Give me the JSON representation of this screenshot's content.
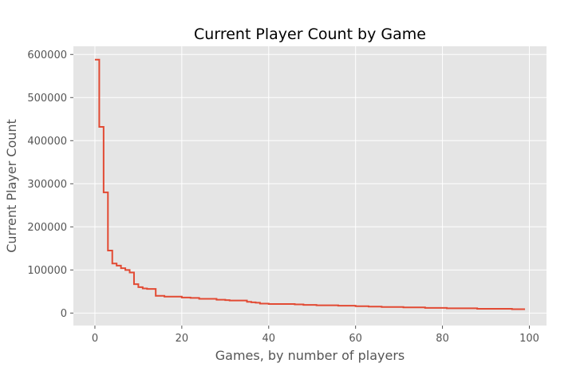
{
  "chart_data": {
    "type": "line",
    "drawstyle": "steps-post",
    "title": "Current Player Count by Game",
    "xlabel": "Games, by number of players",
    "ylabel": "Current Player Count",
    "xlim": [
      -4.95,
      103.95
    ],
    "ylim": [
      -29000,
      619000
    ],
    "xticks": [
      0,
      20,
      40,
      60,
      80,
      100
    ],
    "xtick_labels": [
      "0",
      "20",
      "40",
      "60",
      "80",
      "100"
    ],
    "yticks": [
      0,
      100000,
      200000,
      300000,
      400000,
      500000,
      600000
    ],
    "ytick_labels": [
      "0",
      "100000",
      "200000",
      "300000",
      "400000",
      "500000",
      "600000"
    ],
    "grid": true,
    "style": "ggplot",
    "line_color": "#E24A33",
    "background_color": "#E5E5E5",
    "series": [
      {
        "name": "Current Player Count",
        "x": [
          0,
          1,
          2,
          3,
          4,
          5,
          6,
          7,
          8,
          9,
          10,
          11,
          12,
          13,
          14,
          15,
          16,
          17,
          18,
          19,
          20,
          21,
          22,
          23,
          24,
          25,
          26,
          27,
          28,
          29,
          30,
          31,
          32,
          33,
          34,
          35,
          36,
          37,
          38,
          39,
          40,
          41,
          42,
          43,
          44,
          45,
          46,
          47,
          48,
          49,
          50,
          51,
          52,
          53,
          54,
          55,
          56,
          57,
          58,
          59,
          60,
          61,
          62,
          63,
          64,
          65,
          66,
          67,
          68,
          69,
          70,
          71,
          72,
          73,
          74,
          75,
          76,
          77,
          78,
          79,
          80,
          81,
          82,
          83,
          84,
          85,
          86,
          87,
          88,
          89,
          90,
          91,
          92,
          93,
          94,
          95,
          96,
          97,
          98,
          99
        ],
        "y": [
          588000,
          432000,
          280000,
          145000,
          115000,
          110000,
          104000,
          100000,
          94000,
          67000,
          60000,
          57000,
          56000,
          56000,
          40000,
          40000,
          38000,
          38000,
          38000,
          38000,
          36000,
          36000,
          35000,
          35000,
          33000,
          33000,
          33000,
          33000,
          31000,
          31000,
          30000,
          29000,
          29000,
          29000,
          29000,
          26000,
          25000,
          24000,
          22000,
          22000,
          21000,
          21000,
          21000,
          21000,
          21000,
          21000,
          20000,
          20000,
          19000,
          19000,
          19000,
          18000,
          18000,
          18000,
          18000,
          18000,
          17000,
          17000,
          17000,
          17000,
          16000,
          16000,
          16000,
          15000,
          15000,
          15000,
          14000,
          14000,
          14000,
          14000,
          14000,
          13000,
          13000,
          13000,
          13000,
          13000,
          12000,
          12000,
          12000,
          12000,
          12000,
          11000,
          11000,
          11000,
          11000,
          11000,
          11000,
          11000,
          10000,
          10000,
          10000,
          10000,
          10000,
          10000,
          10000,
          10000,
          9000,
          9000,
          9000,
          9000
        ]
      }
    ]
  }
}
